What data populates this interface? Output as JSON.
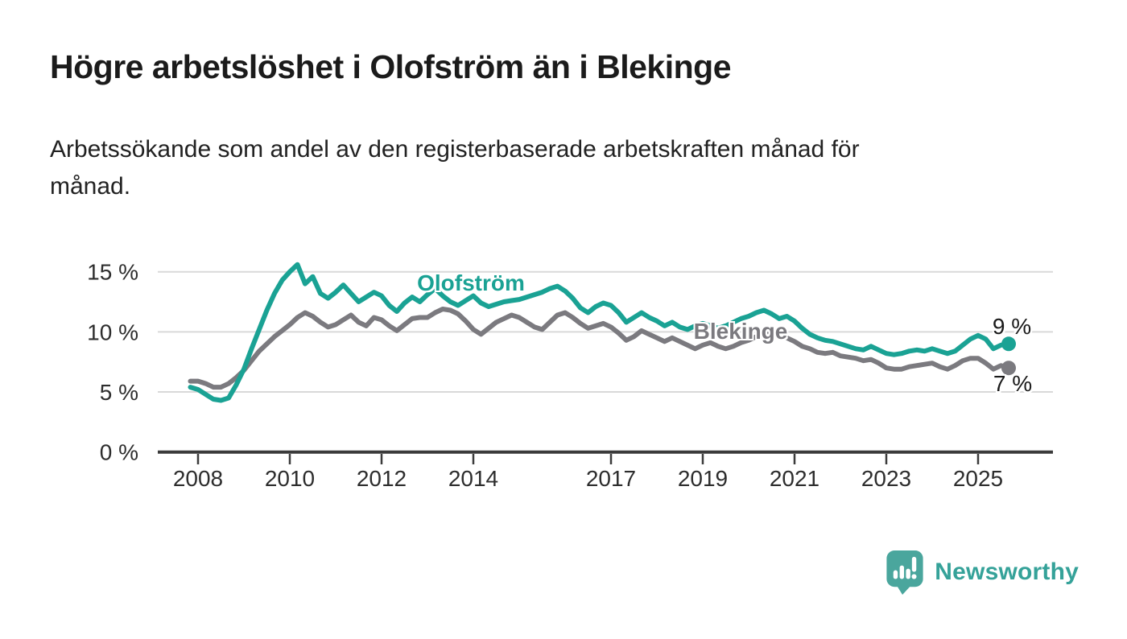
{
  "page": {
    "title": "Högre arbetslöshet i Olofström än i Blekinge",
    "subtitle_lines": [
      "Arbetssökande som andel av den registerbaserade arbetskraften månad för",
      "månad."
    ]
  },
  "branding": {
    "name": "Newsworthy",
    "icon": "speech-bubble-bar-chart-exclamation",
    "icon_color": "#4aa69d",
    "text_color": "#35a299"
  },
  "chart_data": {
    "type": "line",
    "unit": "%",
    "grid": "horizontal",
    "x_start": 2007.8333,
    "x_step": 0.1666667,
    "xlim": [
      2007.5,
      2026.2
    ],
    "ylim": [
      0,
      16.5
    ],
    "x_ticks": [
      {
        "value": 2008,
        "label": "2008"
      },
      {
        "value": 2010,
        "label": "2010"
      },
      {
        "value": 2012,
        "label": "2012"
      },
      {
        "value": 2014,
        "label": "2014"
      },
      {
        "value": 2017,
        "label": "2017"
      },
      {
        "value": 2019,
        "label": "2019"
      },
      {
        "value": 2021,
        "label": "2021"
      },
      {
        "value": 2023,
        "label": "2023"
      },
      {
        "value": 2025,
        "label": "2025"
      }
    ],
    "y_ticks": [
      {
        "value": 0,
        "label": "0 %"
      },
      {
        "value": 5,
        "label": "5 %"
      },
      {
        "value": 10,
        "label": "10 %"
      },
      {
        "value": 15,
        "label": "15 %"
      }
    ],
    "series": [
      {
        "name": "Olofström",
        "color": "#1aa294",
        "end_label": "9 %",
        "end_value": 9,
        "values": [
          5.4,
          5.2,
          4.8,
          4.4,
          4.3,
          4.5,
          5.6,
          6.9,
          8.6,
          10.2,
          11.8,
          13.2,
          14.3,
          15.0,
          15.6,
          14.0,
          14.6,
          13.2,
          12.8,
          13.3,
          13.9,
          13.2,
          12.5,
          12.9,
          13.3,
          13.0,
          12.2,
          11.7,
          12.4,
          12.9,
          12.5,
          13.1,
          13.6,
          13.0,
          12.5,
          12.2,
          12.6,
          13.0,
          12.4,
          12.1,
          12.3,
          12.5,
          12.6,
          12.7,
          12.9,
          13.1,
          13.3,
          13.6,
          13.8,
          13.4,
          12.8,
          12.0,
          11.6,
          12.1,
          12.4,
          12.2,
          11.6,
          10.8,
          11.2,
          11.6,
          11.2,
          10.9,
          10.5,
          10.8,
          10.4,
          10.2,
          10.5,
          10.7,
          10.5,
          10.3,
          10.5,
          10.8,
          11.1,
          11.3,
          11.6,
          11.8,
          11.5,
          11.1,
          11.3,
          10.9,
          10.3,
          9.8,
          9.5,
          9.3,
          9.2,
          9.0,
          8.8,
          8.6,
          8.5,
          8.8,
          8.5,
          8.2,
          8.1,
          8.2,
          8.4,
          8.5,
          8.4,
          8.6,
          8.4,
          8.2,
          8.4,
          8.9,
          9.4,
          9.7,
          9.4,
          8.6,
          8.9,
          9.0
        ]
      },
      {
        "name": "Blekinge",
        "color": "#7b7a7f",
        "end_label": "7 %",
        "end_value": 7,
        "values": [
          5.9,
          5.9,
          5.7,
          5.4,
          5.4,
          5.7,
          6.2,
          6.8,
          7.6,
          8.4,
          9.0,
          9.6,
          10.1,
          10.6,
          11.2,
          11.6,
          11.3,
          10.8,
          10.4,
          10.6,
          11.0,
          11.4,
          10.8,
          10.5,
          11.2,
          11.0,
          10.5,
          10.1,
          10.6,
          11.1,
          11.2,
          11.2,
          11.6,
          11.9,
          11.8,
          11.5,
          10.9,
          10.2,
          9.8,
          10.3,
          10.8,
          11.1,
          11.4,
          11.2,
          10.8,
          10.4,
          10.2,
          10.8,
          11.4,
          11.6,
          11.2,
          10.7,
          10.3,
          10.5,
          10.7,
          10.4,
          9.9,
          9.3,
          9.6,
          10.1,
          9.8,
          9.5,
          9.2,
          9.5,
          9.2,
          8.9,
          8.6,
          8.9,
          9.1,
          8.8,
          8.6,
          8.8,
          9.1,
          9.3,
          9.6,
          9.9,
          9.8,
          9.6,
          9.5,
          9.2,
          8.8,
          8.6,
          8.3,
          8.2,
          8.3,
          8.0,
          7.9,
          7.8,
          7.6,
          7.7,
          7.4,
          7.0,
          6.9,
          6.9,
          7.1,
          7.2,
          7.3,
          7.4,
          7.1,
          6.9,
          7.2,
          7.6,
          7.8,
          7.8,
          7.4,
          6.9,
          7.2,
          7.0
        ]
      }
    ]
  }
}
